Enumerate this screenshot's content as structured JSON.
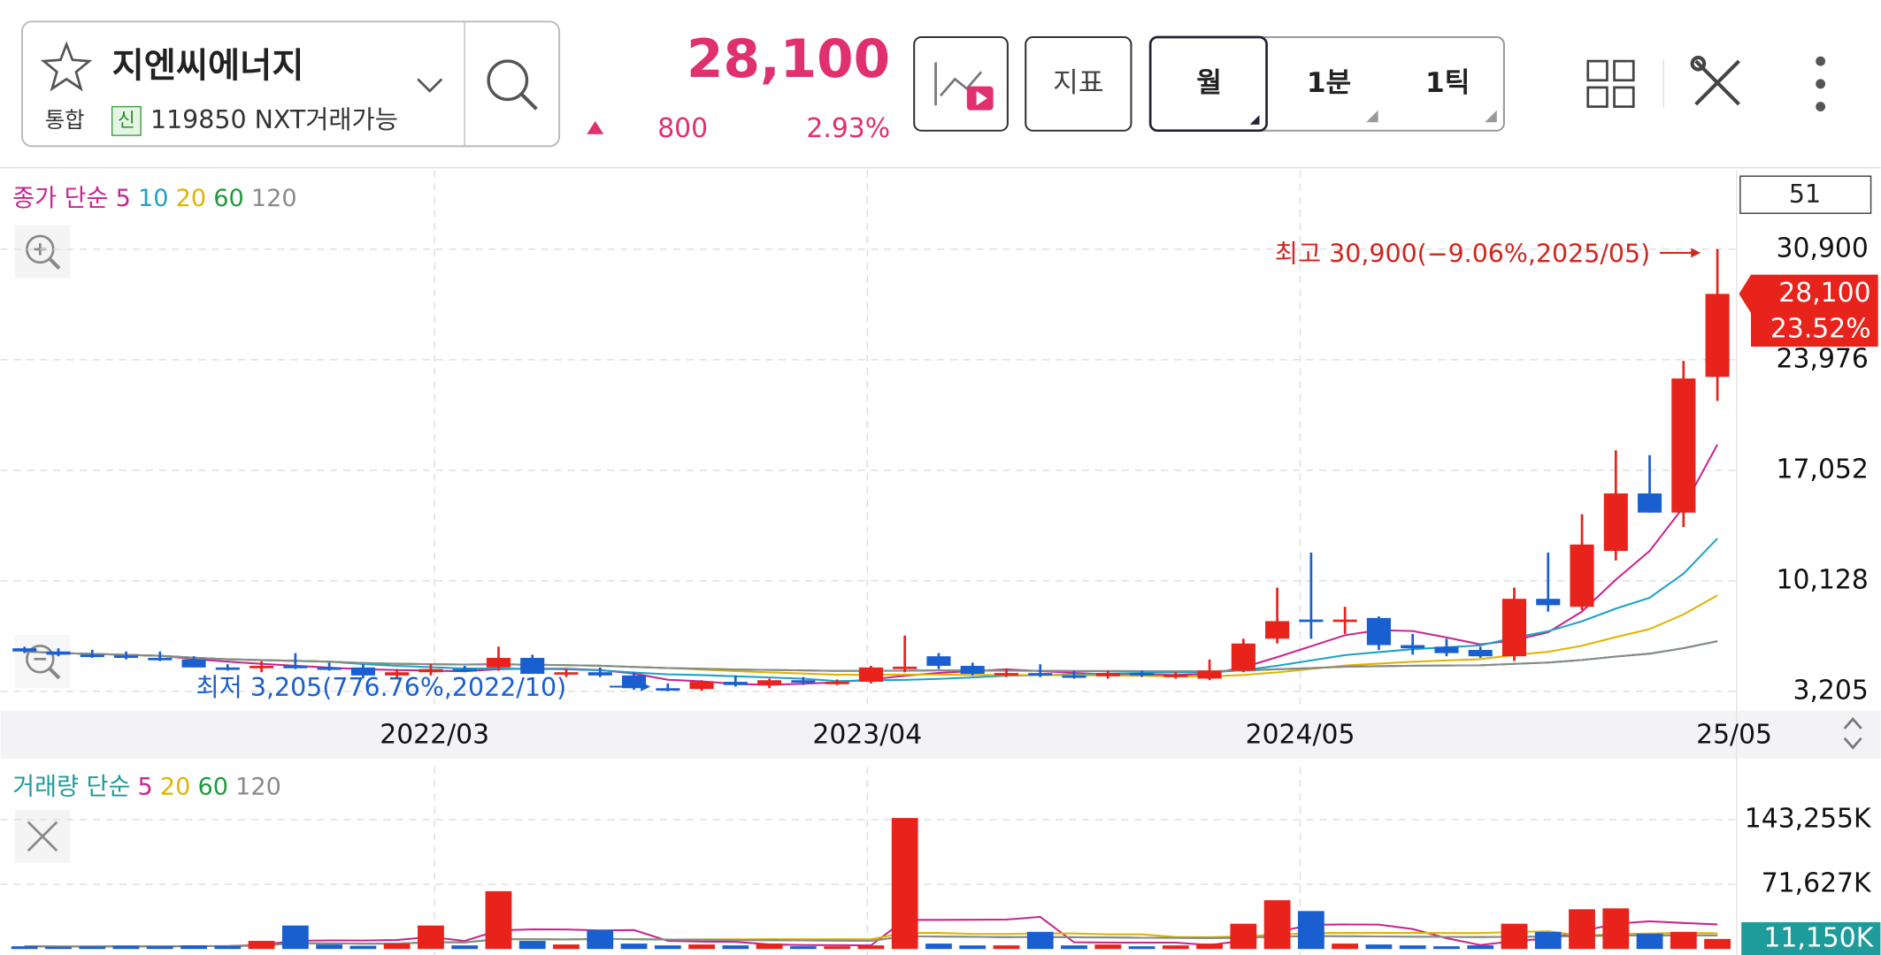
{
  "header": {
    "name": "지엔씨에너지",
    "market": "통합",
    "badge": "신",
    "code": "119850 NXT거래가능",
    "price": "28,100",
    "change": "800",
    "change_rate": "2.93%",
    "buttons": [
      "지표",
      "월",
      "1분",
      "1틱"
    ]
  },
  "price_chart": {
    "type": "candlestick",
    "legend": {
      "title": "종가 단순",
      "items": [
        {
          "name": "5",
          "color": "#c8238f"
        },
        {
          "name": "10",
          "color": "#1aa3c6"
        },
        {
          "name": "20",
          "color": "#e0b400"
        },
        {
          "name": "60",
          "color": "#1f9a3c"
        },
        {
          "name": "120",
          "color": "#8a8a8a"
        }
      ]
    },
    "count": "51",
    "up_color": "#e8231b",
    "down_color": "#1a5fd0",
    "open": [
      5900,
      5700,
      5500,
      5450,
      5300,
      5200,
      4700,
      4650,
      4800,
      4700,
      4700,
      4200,
      4400,
      4600,
      4700,
      5300,
      4300,
      4400,
      4200,
      3400,
      3350,
      3800,
      3600,
      3900,
      3750,
      3800,
      4700,
      5400,
      4800,
      4300,
      4350,
      4200,
      4150,
      4350,
      4200,
      4000,
      4500,
      6500,
      7700,
      7600,
      7800,
      6100,
      6000,
      5800,
      5400,
      9000,
      8500,
      12000,
      15600,
      14400,
      22900
    ],
    "high": [
      6000,
      5900,
      5800,
      5700,
      5700,
      5400,
      4900,
      5100,
      5600,
      5000,
      4900,
      4600,
      4900,
      4800,
      6000,
      5500,
      4600,
      4700,
      4400,
      3700,
      3900,
      4200,
      4000,
      4100,
      3950,
      4800,
      6700,
      5600,
      5000,
      4600,
      4900,
      4500,
      4500,
      4500,
      4400,
      5200,
      6500,
      9700,
      11900,
      8500,
      7900,
      6800,
      6500,
      6000,
      9700,
      11900,
      14300,
      18300,
      18000,
      23900,
      30900
    ],
    "low": [
      5600,
      5400,
      5300,
      5200,
      5100,
      4700,
      4500,
      4400,
      4600,
      4500,
      4000,
      4000,
      4200,
      4400,
      4500,
      4300,
      4100,
      4100,
      3300,
      3205,
      3250,
      3500,
      3400,
      3600,
      3600,
      3700,
      4400,
      4600,
      4200,
      4100,
      4100,
      4000,
      4000,
      4100,
      4000,
      3900,
      4400,
      6200,
      6500,
      6800,
      5800,
      5500,
      5400,
      5300,
      5100,
      8200,
      8300,
      11400,
      14400,
      13500,
      21400
    ],
    "close": [
      5700,
      5500,
      5450,
      5300,
      5200,
      4700,
      4650,
      4800,
      4700,
      4600,
      4200,
      4400,
      4600,
      4500,
      5300,
      4300,
      4400,
      4200,
      3400,
      3350,
      3800,
      3600,
      3900,
      3750,
      3800,
      4700,
      4750,
      4800,
      4300,
      4350,
      4200,
      4150,
      4350,
      4200,
      4250,
      4500,
      6200,
      7600,
      7600,
      7700,
      6100,
      5900,
      5600,
      5400,
      9000,
      8600,
      12400,
      15600,
      14400,
      22800,
      28100
    ],
    "ylim": [
      2000,
      35250
    ],
    "yticks": [
      {
        "value": 3205,
        "label": "3,205"
      },
      {
        "value": 10128,
        "label": "10,128"
      },
      {
        "value": 17052,
        "label": "17,052"
      },
      {
        "value": 23976,
        "label": "23,976"
      },
      {
        "value": 30900,
        "label": "30,900"
      }
    ],
    "xticks": [
      "2022/03",
      "2023/04",
      "2024/05",
      "25/05"
    ],
    "high_note": "최고 30,900(−9.06%,2025/05)",
    "low_note": "최저 3,205(776.76%,2022/10)",
    "last_tag": {
      "value": 28100,
      "label": "28,100",
      "change": "23.52%"
    }
  },
  "volume_chart": {
    "type": "bar",
    "legend": {
      "title": "거래량 단순",
      "items": [
        {
          "name": "5",
          "color": "#c8238f"
        },
        {
          "name": "20",
          "color": "#e0b400"
        },
        {
          "name": "60",
          "color": "#1f9a3c"
        },
        {
          "name": "120",
          "color": "#8a8a8a"
        }
      ]
    },
    "values": [
      3000,
      2500,
      2800,
      3500,
      3000,
      4000,
      3500,
      9000,
      26000,
      5000,
      3500,
      6000,
      26000,
      4000,
      64000,
      9000,
      5000,
      21000,
      6000,
      4000,
      5000,
      4000,
      6000,
      3000,
      3000,
      4000,
      145000,
      6000,
      4000,
      4000,
      19000,
      4000,
      5000,
      3000,
      4000,
      6000,
      28000,
      54000,
      42000,
      6000,
      5000,
      4000,
      3000,
      4000,
      28000,
      19000,
      44000,
      45000,
      17000,
      19000,
      11150
    ],
    "ylim": [
      0,
      195000
    ],
    "yticks": [
      {
        "value": 71627,
        "label": "71,627K"
      },
      {
        "value": 143255,
        "label": "143,255K"
      }
    ],
    "last_tag": {
      "value": 11150,
      "label": "11,150K"
    }
  }
}
